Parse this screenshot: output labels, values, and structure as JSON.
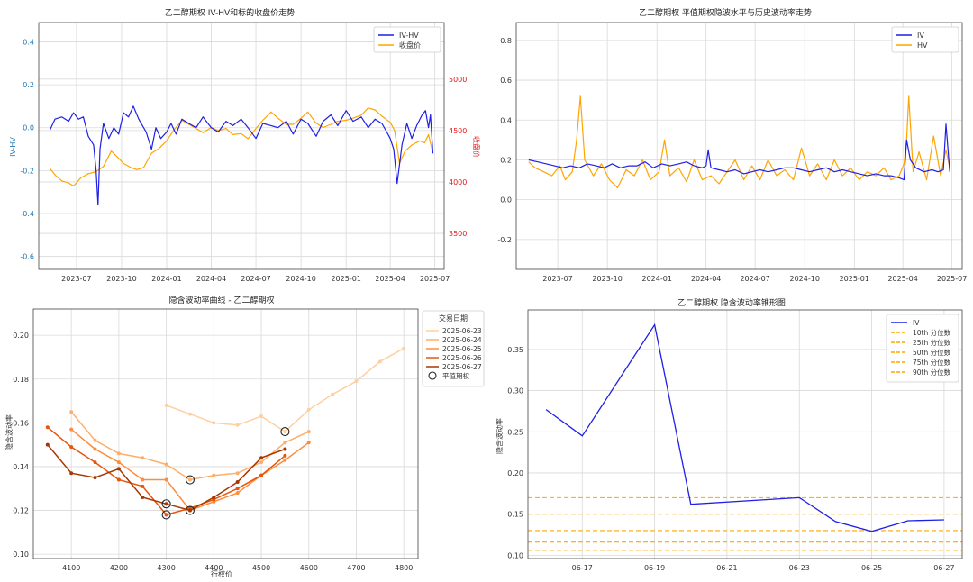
{
  "chart_data": [
    {
      "type": "line",
      "title": "乙二醇期权 IV-HV和标的收盘价走势",
      "xlabel": "",
      "ylabel": "IV-HV",
      "y2label": "收盘价",
      "xlim": [
        "2023-04-15",
        "2025-07-20"
      ],
      "ylim": [
        -0.66,
        0.49
      ],
      "y2lim": [
        3150,
        5550
      ],
      "xticks": [
        "2023-07",
        "2023-10",
        "2024-01",
        "2024-04",
        "2024-07",
        "2024-10",
        "2025-01",
        "2025-04",
        "2025-07"
      ],
      "yticks": [
        -0.6,
        -0.4,
        -0.2,
        0.0,
        0.2,
        0.4
      ],
      "y2ticks": [
        3500,
        4000,
        4500,
        5000
      ],
      "legend_loc": "top-right",
      "grid": true,
      "series": [
        {
          "name": "IV-HV",
          "axis": "left",
          "color": "#1f1fe6",
          "x": [
            "2023-05-08",
            "2023-05-18",
            "2023-06-01",
            "2023-06-15",
            "2023-06-25",
            "2023-07-05",
            "2023-07-15",
            "2023-07-25",
            "2023-08-05",
            "2023-08-10",
            "2023-08-14",
            "2023-08-18",
            "2023-08-25",
            "2023-09-05",
            "2023-09-15",
            "2023-09-25",
            "2023-10-05",
            "2023-10-15",
            "2023-10-25",
            "2023-11-05",
            "2023-11-20",
            "2023-12-01",
            "2023-12-10",
            "2023-12-20",
            "2024-01-01",
            "2024-01-10",
            "2024-01-20",
            "2024-02-01",
            "2024-02-15",
            "2024-03-01",
            "2024-03-15",
            "2024-04-01",
            "2024-04-15",
            "2024-05-01",
            "2024-05-15",
            "2024-06-01",
            "2024-06-15",
            "2024-07-01",
            "2024-07-15",
            "2024-08-01",
            "2024-08-15",
            "2024-09-01",
            "2024-09-15",
            "2024-10-01",
            "2024-10-15",
            "2024-11-01",
            "2024-11-15",
            "2024-12-01",
            "2024-12-15",
            "2025-01-01",
            "2025-01-15",
            "2025-02-01",
            "2025-02-15",
            "2025-03-01",
            "2025-03-15",
            "2025-03-25",
            "2025-04-01",
            "2025-04-08",
            "2025-04-15",
            "2025-04-25",
            "2025-05-05",
            "2025-05-15",
            "2025-05-25",
            "2025-06-05",
            "2025-06-12",
            "2025-06-18",
            "2025-06-22",
            "2025-06-27"
          ],
          "values": [
            -0.01,
            0.04,
            0.05,
            0.03,
            0.07,
            0.04,
            0.05,
            -0.04,
            -0.08,
            -0.2,
            -0.36,
            -0.1,
            0.02,
            -0.05,
            0.0,
            -0.03,
            0.07,
            0.05,
            0.1,
            0.04,
            -0.02,
            -0.1,
            0.0,
            -0.05,
            -0.02,
            0.02,
            -0.03,
            0.04,
            0.02,
            0.0,
            0.05,
            0.0,
            -0.02,
            0.03,
            0.01,
            0.04,
            0.0,
            -0.05,
            0.02,
            0.01,
            0.0,
            0.03,
            -0.03,
            0.04,
            0.02,
            -0.04,
            0.03,
            0.06,
            0.01,
            0.08,
            0.03,
            0.05,
            0.0,
            0.04,
            0.02,
            -0.02,
            -0.05,
            -0.1,
            -0.26,
            -0.08,
            0.02,
            -0.05,
            0.01,
            0.06,
            0.08,
            0.0,
            0.06,
            -0.12
          ]
        },
        {
          "name": "收盘价",
          "axis": "right",
          "color": "#ffa500",
          "x": [
            "2023-05-08",
            "2023-05-20",
            "2023-06-01",
            "2023-06-15",
            "2023-06-25",
            "2023-07-10",
            "2023-07-25",
            "2023-08-10",
            "2023-08-25",
            "2023-09-10",
            "2023-09-25",
            "2023-10-05",
            "2023-10-20",
            "2023-11-01",
            "2023-11-15",
            "2023-12-01",
            "2023-12-15",
            "2024-01-01",
            "2024-01-15",
            "2024-02-01",
            "2024-02-15",
            "2024-03-01",
            "2024-03-15",
            "2024-04-01",
            "2024-04-15",
            "2024-05-01",
            "2024-05-15",
            "2024-06-01",
            "2024-06-15",
            "2024-07-01",
            "2024-07-15",
            "2024-08-01",
            "2024-08-15",
            "2024-09-01",
            "2024-09-15",
            "2024-10-01",
            "2024-10-15",
            "2024-11-01",
            "2024-11-15",
            "2024-12-01",
            "2024-12-15",
            "2025-01-01",
            "2025-01-15",
            "2025-02-01",
            "2025-02-15",
            "2025-03-01",
            "2025-03-15",
            "2025-04-01",
            "2025-04-10",
            "2025-04-20",
            "2025-05-01",
            "2025-05-15",
            "2025-06-01",
            "2025-06-10",
            "2025-06-18",
            "2025-06-27"
          ],
          "values": [
            4130,
            4060,
            4010,
            3990,
            3960,
            4040,
            4080,
            4100,
            4150,
            4300,
            4230,
            4180,
            4140,
            4120,
            4140,
            4280,
            4320,
            4400,
            4500,
            4600,
            4560,
            4520,
            4480,
            4530,
            4500,
            4520,
            4460,
            4470,
            4420,
            4520,
            4600,
            4680,
            4620,
            4560,
            4560,
            4620,
            4680,
            4570,
            4530,
            4560,
            4590,
            4600,
            4620,
            4650,
            4720,
            4700,
            4640,
            4580,
            4500,
            4180,
            4300,
            4360,
            4400,
            4380,
            4460,
            4280
          ]
        }
      ]
    },
    {
      "type": "line",
      "title": "乙二醇期权 平值期权隐波水平与历史波动率走势",
      "xlabel": "",
      "ylabel": "",
      "xlim": [
        "2023-04-15",
        "2025-07-20"
      ],
      "ylim": [
        -0.35,
        0.89
      ],
      "xticks": [
        "2023-07",
        "2023-10",
        "2024-01",
        "2024-04",
        "2024-07",
        "2024-10",
        "2025-01",
        "2025-04",
        "2025-07"
      ],
      "yticks": [
        -0.2,
        0.0,
        0.2,
        0.4,
        0.6,
        0.8
      ],
      "legend_loc": "top-right",
      "grid": true,
      "series": [
        {
          "name": "IV",
          "color": "#1f1fe6",
          "x": [
            "2023-05-08",
            "2023-05-25",
            "2023-06-10",
            "2023-06-25",
            "2023-07-10",
            "2023-07-25",
            "2023-08-10",
            "2023-08-25",
            "2023-09-10",
            "2023-09-25",
            "2023-10-10",
            "2023-10-25",
            "2023-11-10",
            "2023-11-25",
            "2023-12-10",
            "2023-12-25",
            "2024-01-10",
            "2024-01-25",
            "2024-02-10",
            "2024-02-25",
            "2024-03-10",
            "2024-03-25",
            "2024-04-01",
            "2024-04-05",
            "2024-04-10",
            "2024-04-25",
            "2024-05-10",
            "2024-05-25",
            "2024-06-10",
            "2024-06-25",
            "2024-07-10",
            "2024-07-25",
            "2024-08-10",
            "2024-08-25",
            "2024-09-10",
            "2024-09-25",
            "2024-10-10",
            "2024-10-25",
            "2024-11-10",
            "2024-11-25",
            "2024-12-10",
            "2024-12-25",
            "2025-01-10",
            "2025-01-25",
            "2025-02-10",
            "2025-02-25",
            "2025-03-10",
            "2025-03-25",
            "2025-04-03",
            "2025-04-08",
            "2025-04-15",
            "2025-04-25",
            "2025-05-10",
            "2025-05-25",
            "2025-06-05",
            "2025-06-15",
            "2025-06-20",
            "2025-06-27"
          ],
          "values": [
            0.2,
            0.19,
            0.18,
            0.17,
            0.16,
            0.17,
            0.16,
            0.18,
            0.17,
            0.16,
            0.18,
            0.16,
            0.17,
            0.17,
            0.19,
            0.16,
            0.18,
            0.17,
            0.18,
            0.19,
            0.17,
            0.16,
            0.17,
            0.25,
            0.16,
            0.15,
            0.14,
            0.15,
            0.13,
            0.14,
            0.15,
            0.14,
            0.15,
            0.16,
            0.16,
            0.15,
            0.14,
            0.15,
            0.16,
            0.14,
            0.15,
            0.14,
            0.13,
            0.12,
            0.13,
            0.12,
            0.12,
            0.11,
            0.1,
            0.3,
            0.2,
            0.16,
            0.14,
            0.15,
            0.14,
            0.15,
            0.38,
            0.14
          ]
        },
        {
          "name": "HV",
          "color": "#ffa500",
          "x": [
            "2023-05-08",
            "2023-05-20",
            "2023-06-05",
            "2023-06-20",
            "2023-07-05",
            "2023-07-15",
            "2023-07-28",
            "2023-08-05",
            "2023-08-12",
            "2023-08-20",
            "2023-09-05",
            "2023-09-20",
            "2023-10-05",
            "2023-10-20",
            "2023-11-05",
            "2023-11-20",
            "2023-12-05",
            "2023-12-20",
            "2024-01-05",
            "2024-01-15",
            "2024-01-25",
            "2024-02-10",
            "2024-02-25",
            "2024-03-10",
            "2024-03-25",
            "2024-04-10",
            "2024-04-25",
            "2024-05-10",
            "2024-05-25",
            "2024-06-10",
            "2024-06-25",
            "2024-07-10",
            "2024-07-25",
            "2024-08-10",
            "2024-08-25",
            "2024-09-10",
            "2024-09-25",
            "2024-10-10",
            "2024-10-25",
            "2024-11-10",
            "2024-11-25",
            "2024-12-10",
            "2024-12-25",
            "2025-01-10",
            "2025-01-25",
            "2025-02-10",
            "2025-02-25",
            "2025-03-10",
            "2025-03-25",
            "2025-04-03",
            "2025-04-08",
            "2025-04-12",
            "2025-04-20",
            "2025-05-01",
            "2025-05-15",
            "2025-05-28",
            "2025-06-10",
            "2025-06-20",
            "2025-06-27"
          ],
          "values": [
            0.19,
            0.16,
            0.14,
            0.12,
            0.17,
            0.1,
            0.14,
            0.3,
            0.52,
            0.2,
            0.12,
            0.18,
            0.1,
            0.06,
            0.15,
            0.12,
            0.2,
            0.1,
            0.14,
            0.3,
            0.12,
            0.16,
            0.09,
            0.2,
            0.1,
            0.12,
            0.08,
            0.14,
            0.2,
            0.1,
            0.17,
            0.1,
            0.2,
            0.12,
            0.15,
            0.1,
            0.26,
            0.12,
            0.18,
            0.1,
            0.2,
            0.12,
            0.16,
            0.1,
            0.14,
            0.12,
            0.16,
            0.1,
            0.12,
            0.18,
            0.3,
            0.52,
            0.14,
            0.24,
            0.1,
            0.32,
            0.12,
            0.25,
            0.16
          ]
        }
      ]
    },
    {
      "type": "line",
      "title": "隐含波动率曲线 - 乙二醇期权",
      "xlabel": "行权价",
      "ylabel": "隐含波动率",
      "xlim": [
        4020,
        4830
      ],
      "ylim": [
        0.098,
        0.212
      ],
      "xticks": [
        4100,
        4200,
        4300,
        4400,
        4500,
        4600,
        4700,
        4800
      ],
      "yticks": [
        0.1,
        0.12,
        0.14,
        0.16,
        0.18,
        0.2
      ],
      "legend_title": "交易日期",
      "legend_loc": "upper-right-outside",
      "atm_marker_label": "平值期权",
      "grid": true,
      "series": [
        {
          "name": "2025-06-23",
          "color": "#fdd0a2",
          "x": [
            4300,
            4350,
            4400,
            4450,
            4500,
            4550,
            4600,
            4650,
            4700,
            4750,
            4800
          ],
          "values": [
            0.168,
            0.164,
            0.16,
            0.159,
            0.163,
            0.156,
            0.166,
            0.173,
            0.179,
            0.188,
            0.194
          ],
          "atm": [
            4550,
            0.156
          ]
        },
        {
          "name": "2025-06-24",
          "color": "#fdae6b",
          "x": [
            4100,
            4150,
            4200,
            4250,
            4300,
            4350,
            4400,
            4450,
            4500,
            4550,
            4600
          ],
          "values": [
            0.165,
            0.152,
            0.146,
            0.144,
            0.141,
            0.134,
            0.136,
            0.137,
            0.142,
            0.151,
            0.156
          ],
          "atm": [
            4350,
            0.134
          ]
        },
        {
          "name": "2025-06-25",
          "color": "#fd8d3c",
          "x": [
            4100,
            4150,
            4200,
            4250,
            4300,
            4350,
            4400,
            4450,
            4500,
            4550,
            4600
          ],
          "values": [
            0.157,
            0.148,
            0.142,
            0.134,
            0.134,
            0.12,
            0.124,
            0.128,
            0.136,
            0.143,
            0.151
          ],
          "atm": [
            4350,
            0.12
          ]
        },
        {
          "name": "2025-06-26",
          "color": "#e6550d",
          "x": [
            4050,
            4100,
            4150,
            4200,
            4250,
            4300,
            4350,
            4400,
            4450,
            4500,
            4550
          ],
          "values": [
            0.158,
            0.149,
            0.142,
            0.134,
            0.131,
            0.118,
            0.121,
            0.125,
            0.13,
            0.136,
            0.145
          ],
          "atm": [
            4300,
            0.118
          ]
        },
        {
          "name": "2025-06-27",
          "color": "#a63603",
          "x": [
            4050,
            4100,
            4150,
            4200,
            4250,
            4300,
            4350,
            4400,
            4450,
            4500,
            4550
          ],
          "values": [
            0.15,
            0.137,
            0.135,
            0.139,
            0.126,
            0.123,
            0.12,
            0.126,
            0.133,
            0.144,
            0.148
          ],
          "atm": [
            4300,
            0.123
          ]
        }
      ]
    },
    {
      "type": "line",
      "title": "乙二醇期权 隐含波动率锥形图",
      "xlabel": "",
      "ylabel": "隐含波动率",
      "xlim": [
        "2025-06-15 12:00",
        "2025-06-27 12:00"
      ],
      "ylim": [
        0.096,
        0.398
      ],
      "xticks": [
        "06-17",
        "06-19",
        "06-21",
        "06-23",
        "06-25",
        "06-27"
      ],
      "yticks": [
        0.1,
        0.15,
        0.2,
        0.25,
        0.3,
        0.35
      ],
      "legend_loc": "top-right",
      "grid": true,
      "series": [
        {
          "name": "IV",
          "color": "#1f1fe6",
          "x": [
            "2025-06-16",
            "2025-06-17",
            "2025-06-19",
            "2025-06-20",
            "2025-06-23",
            "2025-06-24",
            "2025-06-25",
            "2025-06-26",
            "2025-06-27"
          ],
          "values": [
            0.277,
            0.245,
            0.38,
            0.162,
            0.17,
            0.141,
            0.129,
            0.142,
            0.143
          ]
        }
      ],
      "percentiles": [
        {
          "name": "10th 分位数",
          "value": 0.106,
          "color": "#ffa500"
        },
        {
          "name": "25th 分位数",
          "value": 0.116,
          "color": "#ffa500"
        },
        {
          "name": "50th 分位数",
          "value": 0.13,
          "color": "#ffa500"
        },
        {
          "name": "75th 分位数",
          "value": 0.15,
          "color": "#ffa500"
        },
        {
          "name": "90th 分位数",
          "value": 0.17,
          "color": "#ffa500"
        }
      ]
    }
  ]
}
